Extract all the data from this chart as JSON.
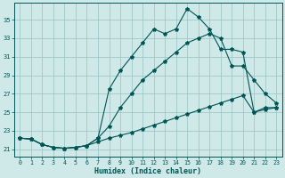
{
  "xlabel": "Humidex (Indice chaleur)",
  "bg_color": "#cfe8e8",
  "grid_color": "#a0c8c8",
  "line_color": "#005555",
  "x_ticks": [
    0,
    1,
    2,
    3,
    4,
    5,
    6,
    7,
    8,
    9,
    10,
    11,
    12,
    13,
    14,
    15,
    16,
    17,
    18,
    19,
    20,
    21,
    22,
    23
  ],
  "y_ticks": [
    21,
    23,
    25,
    27,
    29,
    31,
    33,
    35
  ],
  "ylim": [
    20.2,
    36.8
  ],
  "xlim": [
    -0.5,
    23.5
  ],
  "line1_x": [
    0,
    1,
    2,
    3,
    4,
    5,
    6,
    7,
    8,
    9,
    10,
    11,
    12,
    13,
    14,
    15,
    16,
    17,
    18,
    19,
    20,
    21,
    22,
    23
  ],
  "line1_y": [
    22.2,
    22.1,
    21.5,
    21.2,
    21.1,
    21.2,
    21.4,
    22.2,
    27.5,
    29.5,
    31.0,
    32.5,
    34.0,
    33.5,
    34.0,
    36.2,
    35.3,
    34.0,
    31.8,
    31.8,
    31.5,
    25.0,
    25.5,
    25.5
  ],
  "line2_x": [
    0,
    1,
    2,
    3,
    4,
    5,
    6,
    7,
    8,
    9,
    10,
    11,
    12,
    13,
    14,
    15,
    16,
    17,
    18,
    19,
    20,
    21,
    22,
    23
  ],
  "line2_y": [
    22.2,
    22.1,
    21.5,
    21.2,
    21.1,
    21.2,
    21.4,
    22.2,
    23.5,
    25.5,
    27.0,
    28.5,
    29.5,
    30.5,
    31.5,
    32.5,
    33.0,
    33.5,
    33.0,
    30.0,
    30.0,
    28.5,
    27.0,
    26.0
  ],
  "line3_x": [
    0,
    1,
    2,
    3,
    4,
    5,
    6,
    7,
    8,
    9,
    10,
    11,
    12,
    13,
    14,
    15,
    16,
    17,
    18,
    19,
    20,
    21,
    22,
    23
  ],
  "line3_y": [
    22.2,
    22.1,
    21.5,
    21.2,
    21.1,
    21.2,
    21.4,
    21.8,
    22.2,
    22.5,
    22.8,
    23.2,
    23.6,
    24.0,
    24.4,
    24.8,
    25.2,
    25.6,
    26.0,
    26.4,
    26.8,
    25.0,
    25.3,
    25.5
  ]
}
